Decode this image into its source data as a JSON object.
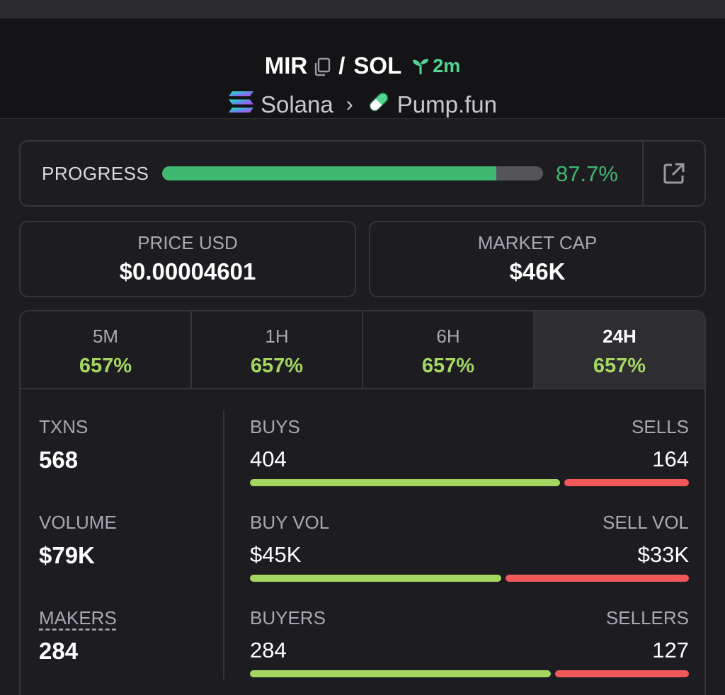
{
  "header": {
    "base_symbol": "MIR",
    "slash": "/",
    "quote_symbol": "SOL",
    "age": "2m",
    "chain": "Solana",
    "breadcrumb_separator": "›",
    "dex": "Pump.fun"
  },
  "progress": {
    "label": "PROGRESS",
    "value_text": "87.7%",
    "fraction": 0.877
  },
  "price": {
    "label": "PRICE USD",
    "value": "$0.00004601"
  },
  "market_cap": {
    "label": "MARKET CAP",
    "value": "$46K"
  },
  "tabs": [
    {
      "label": "5M",
      "change": "657%",
      "active": false
    },
    {
      "label": "1H",
      "change": "657%",
      "active": false
    },
    {
      "label": "6H",
      "change": "657%",
      "active": false
    },
    {
      "label": "24H",
      "change": "657%",
      "active": true
    }
  ],
  "metrics": {
    "txns": {
      "label": "TXNS",
      "value": "568"
    },
    "volume": {
      "label": "VOLUME",
      "value": "$79K"
    },
    "makers": {
      "label": "MAKERS",
      "value": "284"
    }
  },
  "splits": {
    "txns": {
      "left_label": "BUYS",
      "right_label": "SELLS",
      "left_value": "404",
      "right_value": "164",
      "buy_fraction": 0.711
    },
    "volume": {
      "left_label": "BUY VOL",
      "right_label": "SELL VOL",
      "left_value": "$45K",
      "right_value": "$33K",
      "buy_fraction": 0.577
    },
    "makers": {
      "left_label": "BUYERS",
      "right_label": "SELLERS",
      "left_value": "284",
      "right_value": "127",
      "buy_fraction": 0.691
    }
  },
  "colors": {
    "accent_green": "#3fb871",
    "change_green": "#a3d761",
    "sell_red": "#f0585a",
    "background": "#1d1d21",
    "header_background": "#141417"
  },
  "icons": {
    "copy": "copy-icon",
    "age": "seedling-icon",
    "chain_logo": "solana-logo-icon",
    "dex_logo": "pill-icon",
    "external": "external-link-icon"
  }
}
